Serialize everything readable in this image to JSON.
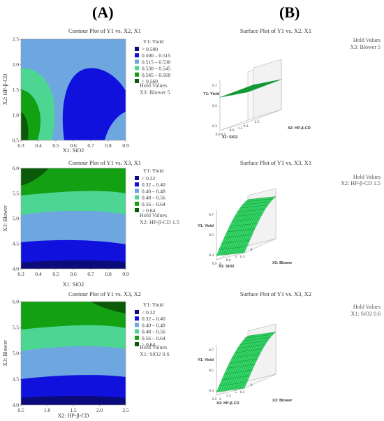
{
  "panels": {
    "a": "(A)",
    "b": "(B)"
  },
  "colors": {
    "c1": "#0b0b7a",
    "c2": "#1111dd",
    "c3": "#6ea6e0",
    "c4": "#4cd692",
    "c5": "#13a013",
    "c6": "#0a5a0a",
    "surface": "#35d86a",
    "surface_grid": "#0a8a2a"
  },
  "chart_data": [
    {
      "type": "contour",
      "title": "Contour Plot of Y1 vs. X2, X1",
      "xlabel": "X1: SiO2",
      "ylabel": "X2: HP-β-CD",
      "xlim": [
        0.3,
        0.9
      ],
      "ylim": [
        0.5,
        2.5
      ],
      "xticks": [
        "0.3",
        "0.4",
        "0.5",
        "0.6",
        "0.7",
        "0.8",
        "0.9"
      ],
      "yticks": [
        "0.5",
        "1.0",
        "1.5",
        "2.0",
        "2.5"
      ],
      "legend_title": "Y1: Yield",
      "levels": [
        "< 0.500",
        "0.500 – 0.515",
        "0.515 – 0.530",
        "0.530 – 0.545",
        "0.545 – 0.560",
        "> 0.560"
      ],
      "hold": [
        "Hold Values",
        "X3: Blower  5"
      ]
    },
    {
      "type": "contour",
      "title": "Contour Plot of Y1 vs. X3, X1",
      "xlabel": "X1: SiO2",
      "ylabel": "X3: Blower",
      "xlim": [
        0.3,
        0.9
      ],
      "ylim": [
        4.0,
        6.0
      ],
      "xticks": [
        "0.3",
        "0.4",
        "0.5",
        "0.6",
        "0.7",
        "0.8",
        "0.9"
      ],
      "yticks": [
        "4.0",
        "4.5",
        "5.0",
        "5.5",
        "6.0"
      ],
      "legend_title": "Y1: Yield",
      "levels": [
        "< 0.32",
        "0.32 – 0.40",
        "0.40 – 0.48",
        "0.48 – 0.56",
        "0.56 – 0.64",
        "> 0.64"
      ],
      "hold": [
        "Hold Values",
        "X2: HP-β-CD  1.5"
      ]
    },
    {
      "type": "contour",
      "title": "Contour Plot of Y1 vs. X3, X2",
      "xlabel": "X2: HP-β-CD",
      "ylabel": "X3: Blower",
      "xlim": [
        0.5,
        2.5
      ],
      "ylim": [
        4.0,
        6.0
      ],
      "xticks": [
        "0.5",
        "1.0",
        "1.5",
        "2.0",
        "2.5"
      ],
      "yticks": [
        "4.0",
        "4.5",
        "5.0",
        "5.5",
        "6.0"
      ],
      "legend_title": "Y1: Yield",
      "levels": [
        "< 0.32",
        "0.32 – 0.40",
        "0.40 – 0.48",
        "0.48 – 0.56",
        "0.56 – 0.64",
        "> 0.64"
      ],
      "hold": [
        "Hold Values",
        "X1: SiO2  0.6"
      ]
    },
    {
      "type": "surface",
      "title": "Surface Plot of Y1 vs. X2, X1",
      "zlabel": "Y1: Yield",
      "xlabel": "X1: SiO2",
      "ylabel": "X2: HP-β-CD",
      "zticks": [
        "0.7",
        "0.5",
        "0.3"
      ],
      "xticks": [
        "0.3",
        "0.6",
        "0.9"
      ],
      "yticks": [
        "0.5",
        "1.5",
        "2.5"
      ],
      "hold": [
        "Hold Values",
        "X3: Blower  5"
      ]
    },
    {
      "type": "surface",
      "title": "Surface Plot of Y1 vs. X3, X1",
      "zlabel": "Y1: Yield",
      "xlabel": "X1: SiO2",
      "ylabel": "X3: Blower",
      "zticks": [
        "0.7",
        "0.5",
        "0.3"
      ],
      "xticks": [
        "0.3",
        "0.6",
        "0.9"
      ],
      "yticks": [
        "4",
        "5",
        "6"
      ],
      "hold": [
        "Hold Values",
        "X2: HP-β-CD  1.5"
      ]
    },
    {
      "type": "surface",
      "title": "Surface Plot of Y1 vs. X3, X2",
      "zlabel": "Y1: Yield",
      "xlabel": "X2: HP-β-CD",
      "ylabel": "X3: Blower",
      "zticks": [
        "0.7",
        "0.5",
        "0.3"
      ],
      "xticks": [
        "0.5",
        "1.5",
        "2.5"
      ],
      "yticks": [
        "4",
        "5",
        "6"
      ],
      "hold": [
        "Hold Values",
        "X1: SiO2  0.6"
      ]
    }
  ]
}
